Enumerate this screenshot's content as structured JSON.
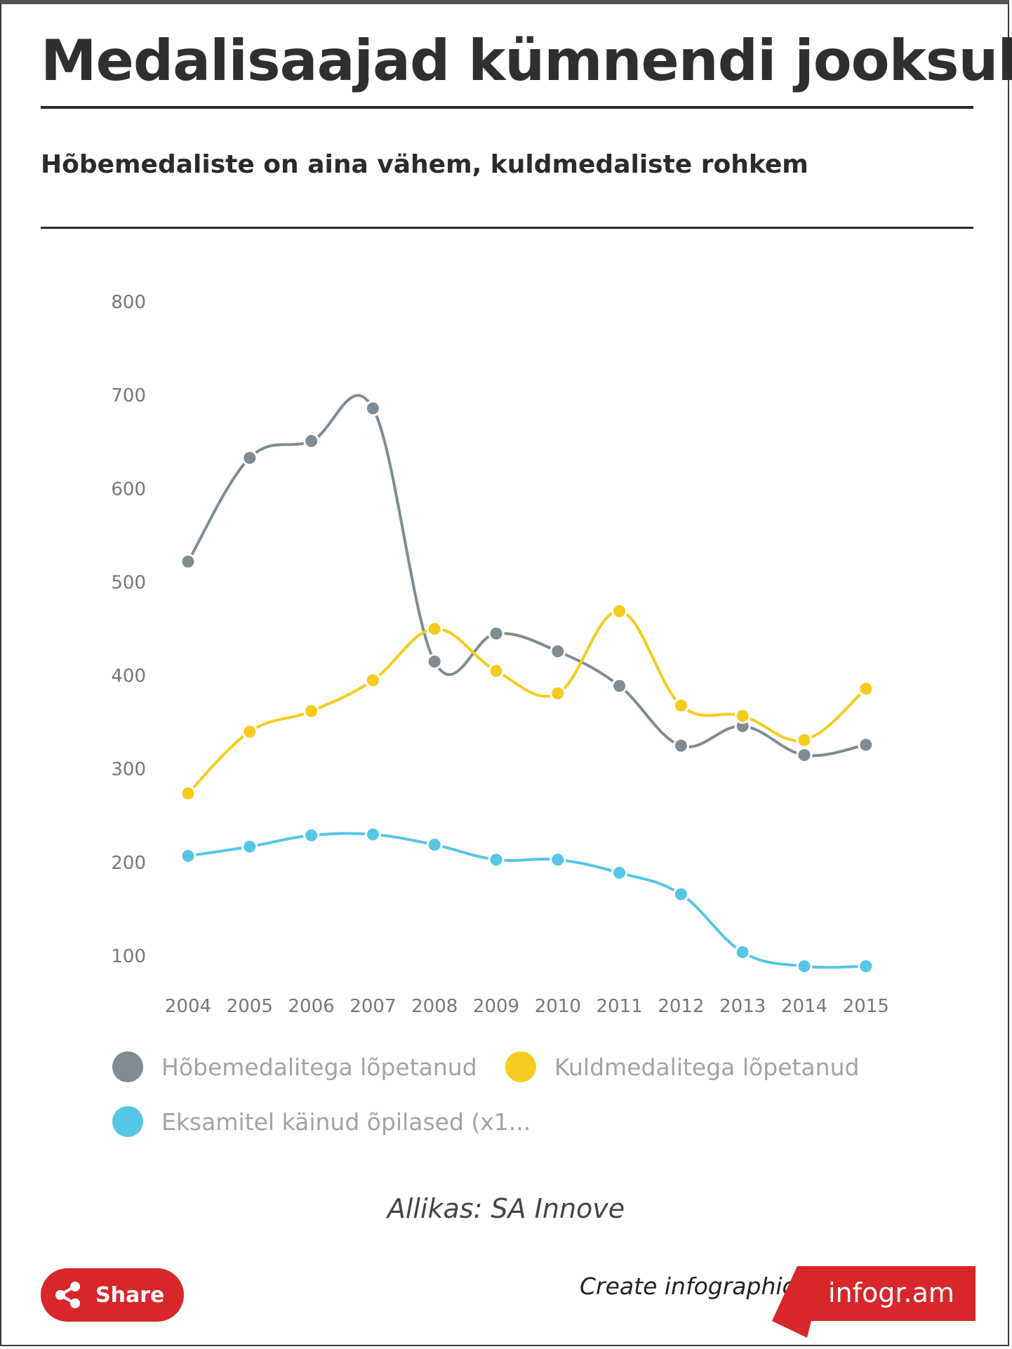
{
  "title": "Medalisaajad kümnendi jooksul",
  "subtitle": "Hõbemedaliste on aina vähem, kuldmedaliste rohkem",
  "source": "Allikas: SA Innove",
  "share_label": "Share",
  "create_text": "Create infographics",
  "brand": "infogr.am",
  "icons": {
    "share": "share-icon"
  },
  "colors": {
    "brand_red": "#d8262a"
  },
  "chart_data": {
    "type": "line",
    "title": "",
    "xlabel": "",
    "ylabel": "",
    "ylim": [
      100,
      800
    ],
    "yticks": [
      "800",
      "700",
      "600",
      "500",
      "400",
      "300",
      "200",
      "100"
    ],
    "categories": [
      "2004",
      "2005",
      "2006",
      "2007",
      "2008",
      "2009",
      "2010",
      "2011",
      "2012",
      "2013",
      "2014",
      "2015"
    ],
    "grid": false,
    "legend_position": "bottom",
    "series": [
      {
        "name": "Hõbemedalitega lõpetanud",
        "color": "#7f8c93",
        "values": [
          522,
          633,
          651,
          686,
          415,
          445,
          426,
          389,
          325,
          346,
          315,
          326
        ]
      },
      {
        "name": "Kuldmedalitega lõpetanud",
        "color": "#f5cc1d",
        "values": [
          274,
          340,
          362,
          395,
          450,
          405,
          381,
          469,
          368,
          357,
          331,
          386
        ]
      },
      {
        "name": "Eksamitel käinud õpilased (x1...",
        "color": "#55c6e6",
        "values": [
          207,
          217,
          229,
          230,
          219,
          203,
          203,
          189,
          166,
          104,
          89,
          89
        ]
      }
    ]
  }
}
